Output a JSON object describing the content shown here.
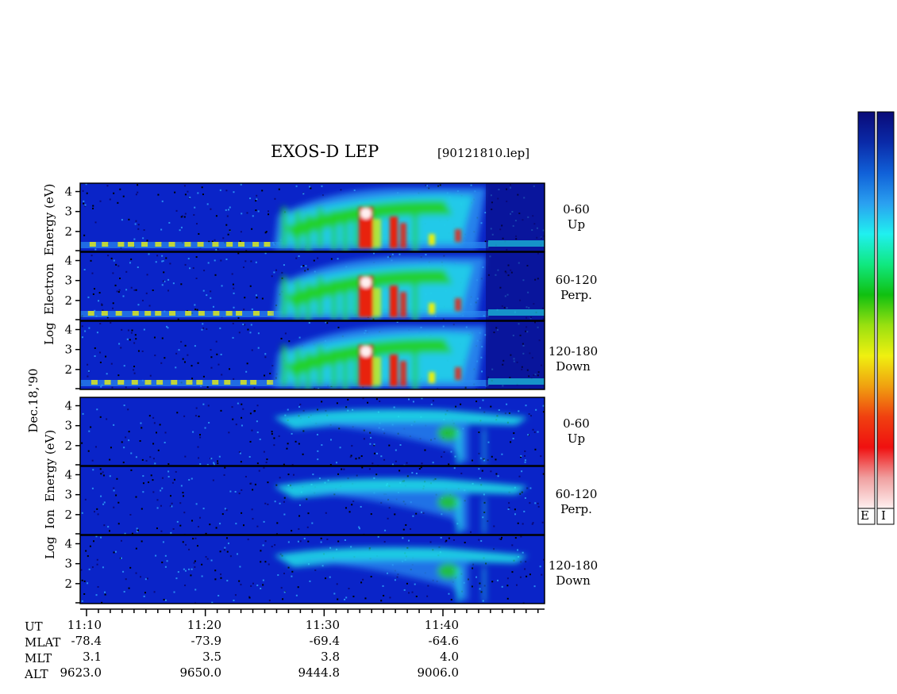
{
  "title": "EXOS-D LEP",
  "file_label": "[90121810.lep]",
  "date_label": "Dec.18,'90",
  "electron_axis_label": [
    "Log",
    "Electron",
    "Energy",
    "(eV)"
  ],
  "ion_axis_label": [
    "Log",
    "Ion",
    "Energy",
    "(eV)"
  ],
  "panel_labels": [
    {
      "range": "0-60",
      "dir": "Up"
    },
    {
      "range": "60-120",
      "dir": "Perp."
    },
    {
      "range": "120-180",
      "dir": "Down"
    },
    {
      "range": "0-60",
      "dir": "Up"
    },
    {
      "range": "60-120",
      "dir": "Perp."
    },
    {
      "range": "120-180",
      "dir": "Down"
    }
  ],
  "colorbar_labels": [
    "E",
    "I"
  ],
  "colorbar_colors": [
    "#0a0a78",
    "#0a2aa8",
    "#1060d8",
    "#2aa0f0",
    "#20f0f0",
    "#10e880",
    "#10c010",
    "#9ae010",
    "#f0f010",
    "#f0a010",
    "#f04010",
    "#f01010",
    "#f0a0a0",
    "#fff0f0"
  ],
  "spectrogram_colors": {
    "background": "#0a24c8",
    "dark": "#0a0a78",
    "mid": "#2a8cf0",
    "cyan": "#20e8e8",
    "green": "#20d020",
    "yellow": "#e8f010",
    "red": "#e82010",
    "white": "#fff0f0"
  },
  "chart_data": {
    "type": "heatmap",
    "title": "EXOS-D LEP",
    "subtitle": "[90121810.lep]",
    "x_axis": {
      "ticks": [
        "11:10",
        "11:20",
        "11:30",
        "11:40"
      ]
    },
    "y_ticks": [
      "2",
      "3",
      "4"
    ],
    "panels": [
      {
        "species": "Electron",
        "range": "0-60",
        "dir": "Up"
      },
      {
        "species": "Electron",
        "range": "60-120",
        "dir": "Perp."
      },
      {
        "species": "Electron",
        "range": "120-180",
        "dir": "Down"
      },
      {
        "species": "Ion",
        "range": "0-60",
        "dir": "Up"
      },
      {
        "species": "Ion",
        "range": "60-120",
        "dir": "Perp."
      },
      {
        "species": "Ion",
        "range": "120-180",
        "dir": "Down"
      }
    ],
    "ephemeris": {
      "rows": [
        "UT",
        "MLAT",
        "MLT",
        "ALT"
      ],
      "columns": [
        {
          "UT": "11:10",
          "MLAT": "-78.4",
          "MLT": "3.1",
          "ALT": "9623.0"
        },
        {
          "UT": "11:20",
          "MLAT": "-73.9",
          "MLT": "3.5",
          "ALT": "9650.0"
        },
        {
          "UT": "11:30",
          "MLAT": "-69.4",
          "MLT": "3.8",
          "ALT": "9444.8"
        },
        {
          "UT": "11:40",
          "MLAT": "-64.6",
          "MLT": "4.0",
          "ALT": "9006.0"
        }
      ]
    }
  }
}
